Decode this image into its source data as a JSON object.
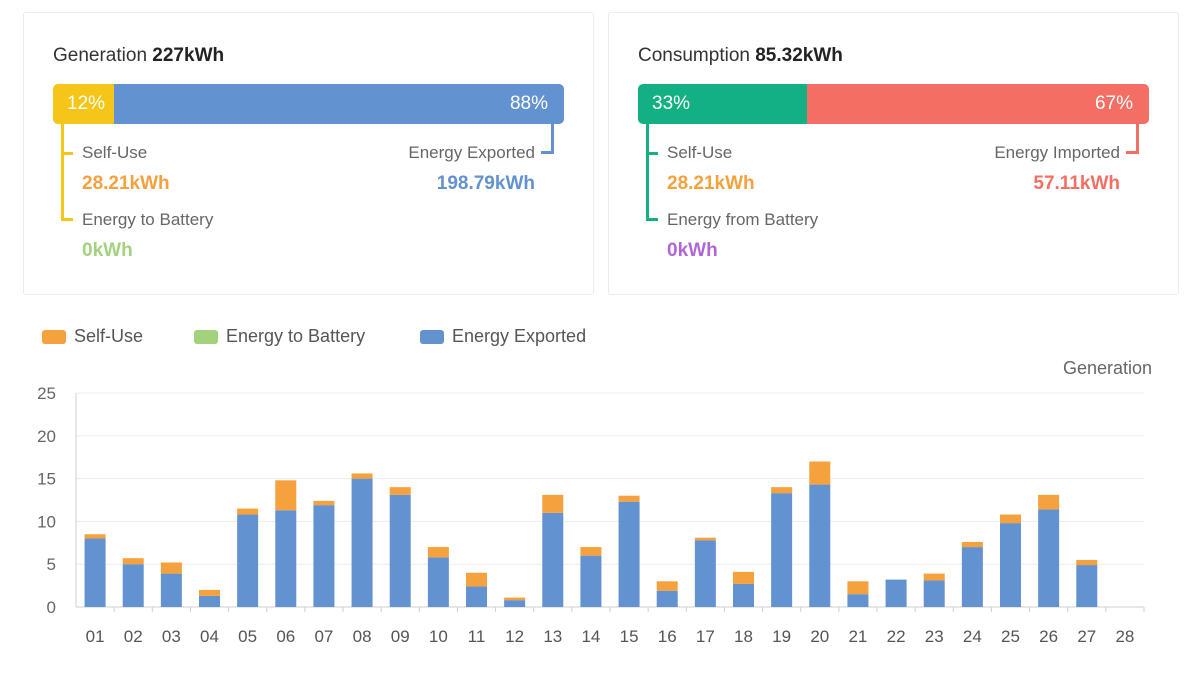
{
  "generation": {
    "title": "Generation",
    "total": "227kWh",
    "left_pct": "12%",
    "right_pct": "88%",
    "left_fraction": 0.12,
    "left_color": "#f5c518",
    "right_color": "#6392d0",
    "self_use_label": "Self-Use",
    "self_use_value": "28.21kWh",
    "self_use_color": "#f5a13d",
    "battery_label": "Energy to Battery",
    "battery_value": "0kWh",
    "battery_color": "#a3d27c",
    "export_label": "Energy Exported",
    "export_value": "198.79kWh",
    "export_color": "#6392d0"
  },
  "consumption": {
    "title": "Consumption",
    "total": "85.32kWh",
    "left_pct": "33%",
    "right_pct": "67%",
    "left_fraction": 0.33,
    "left_color": "#12b082",
    "right_color": "#f36f64",
    "self_use_label": "Self-Use",
    "self_use_value": "28.21kWh",
    "self_use_color": "#f5a13d",
    "battery_label": "Energy from Battery",
    "battery_value": "0kWh",
    "battery_color": "#b066d8",
    "import_label": "Energy Imported",
    "import_value": "57.11kWh",
    "import_color": "#f36f64"
  },
  "chart_data": {
    "type": "bar",
    "stacked": true,
    "unit_label": "Generation",
    "categories": [
      "01",
      "02",
      "03",
      "04",
      "05",
      "06",
      "07",
      "08",
      "09",
      "10",
      "11",
      "12",
      "13",
      "14",
      "15",
      "16",
      "17",
      "18",
      "19",
      "20",
      "21",
      "22",
      "23",
      "24",
      "25",
      "26",
      "27",
      "28"
    ],
    "ylim": [
      0,
      25
    ],
    "yticks": [
      0,
      5,
      10,
      15,
      20,
      25
    ],
    "grid": true,
    "legend_position": "top-left",
    "series": [
      {
        "name": "Energy Exported",
        "color": "#6392d0",
        "values": [
          8.0,
          5.0,
          3.9,
          1.3,
          10.8,
          11.3,
          11.9,
          15.0,
          13.1,
          5.8,
          2.4,
          0.8,
          11.0,
          6.0,
          12.3,
          1.9,
          7.8,
          2.7,
          13.3,
          14.3,
          1.5,
          3.2,
          3.1,
          7.0,
          9.8,
          11.4,
          4.9,
          0
        ]
      },
      {
        "name": "Energy to Battery",
        "color": "#a3d27c",
        "values": [
          0,
          0,
          0,
          0,
          0,
          0,
          0,
          0,
          0,
          0,
          0,
          0,
          0,
          0,
          0,
          0,
          0,
          0,
          0,
          0,
          0,
          0,
          0,
          0,
          0,
          0,
          0,
          0
        ]
      },
      {
        "name": "Self-Use",
        "color": "#f5a13d",
        "values": [
          0.5,
          0.7,
          1.3,
          0.7,
          0.7,
          3.5,
          0.5,
          0.6,
          0.9,
          1.2,
          1.6,
          0.3,
          2.1,
          1.0,
          0.7,
          1.1,
          0.3,
          1.4,
          0.7,
          2.7,
          1.5,
          0,
          0.8,
          0.6,
          1.0,
          1.7,
          0.6,
          0
        ]
      }
    ],
    "legend": [
      "Self-Use",
      "Energy to Battery",
      "Energy Exported"
    ]
  }
}
